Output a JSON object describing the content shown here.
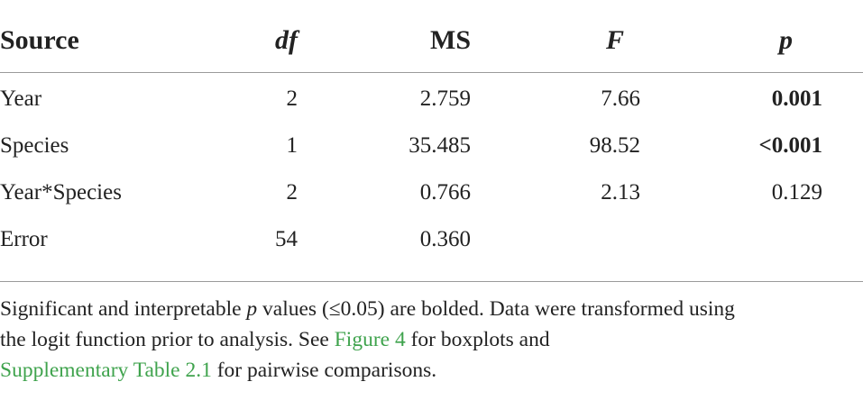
{
  "table": {
    "header": [
      "Source",
      "df",
      "MS",
      "F",
      "p"
    ],
    "rows": [
      [
        "Year",
        "2",
        "2.759",
        "7.66",
        "0.001"
      ],
      [
        "Species",
        "1",
        "35.485",
        "98.52",
        "<0.001"
      ],
      [
        "Year*Species",
        "2",
        "0.766",
        "2.13",
        "0.129"
      ],
      [
        "Error",
        "54",
        "0.360"
      ]
    ]
  },
  "footnote": [
    "Significant and interpretable ",
    "p",
    " values (≤0.05) are bolded. Data were transformed using",
    "the logit function prior to analysis. See ",
    "Figure 4",
    " for boxplots and",
    "Supplementary Table 2.1",
    " for pairwise comparisons."
  ]
}
